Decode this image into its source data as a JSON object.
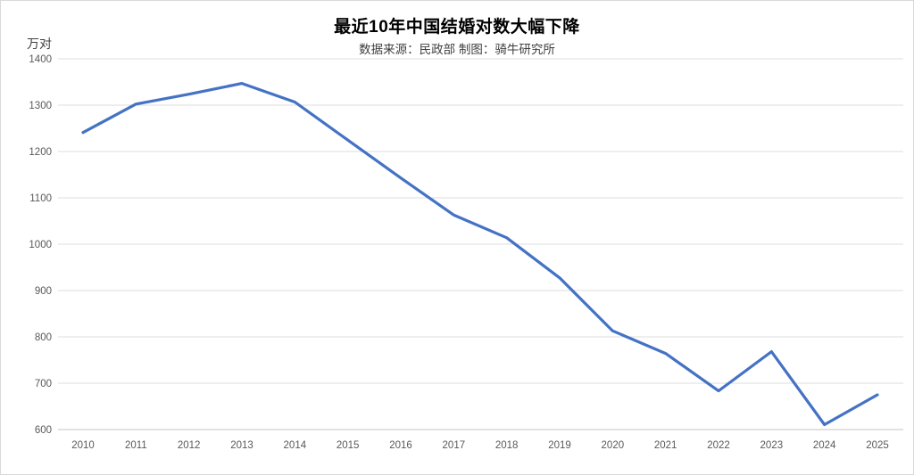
{
  "chart_data": {
    "type": "line",
    "title": "最近10年中国结婚对数大幅下降",
    "subtitle": "数据来源：民政部  制图：骑牛研究所",
    "ylabel": "万对",
    "categories": [
      "2010",
      "2011",
      "2012",
      "2013",
      "2014",
      "2015",
      "2016",
      "2017",
      "2018",
      "2019",
      "2020",
      "2021",
      "2022",
      "2023",
      "2024",
      "2025"
    ],
    "values": [
      1241.0,
      1302.4,
      1323.6,
      1346.9,
      1306.7,
      1224.7,
      1142.8,
      1063.1,
      1013.9,
      927.3,
      813.1,
      764.3,
      683.5,
      768.0,
      610.6,
      675.0
    ],
    "ylim": [
      600,
      1400
    ],
    "ytick_step": 100,
    "yticks": [
      "600",
      "700",
      "800",
      "900",
      "1000",
      "1100",
      "1200",
      "1300",
      "1400"
    ],
    "grid": true,
    "legend_position": "none",
    "line_color": "#4472C4"
  },
  "colors": {
    "line": "#4472C4",
    "gridline": "#DCDCDC",
    "axis_line": "#C6C6C6",
    "title_text": "#000000",
    "subtitle_text": "#3F3F3F",
    "tick_text": "#595959",
    "background": "#FFFFFF",
    "border": "#D9D9D9"
  }
}
